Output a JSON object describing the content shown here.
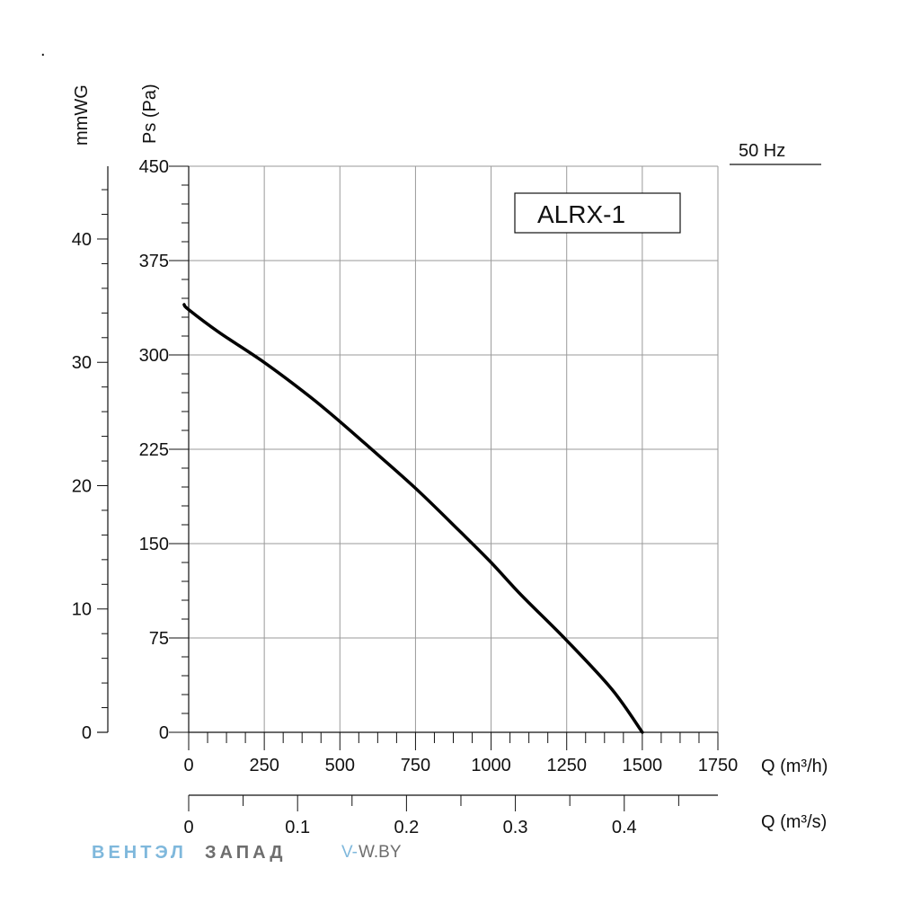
{
  "chart_data": {
    "type": "line",
    "model_label": "ALRX-1",
    "frequency_label": "50 Hz",
    "dot_label": ".",
    "y_left_outer": {
      "label": "mmWG",
      "ticks": [
        0,
        10,
        20,
        30,
        40
      ],
      "range": [
        0,
        45.9
      ]
    },
    "y_left_inner": {
      "label": "Ps (Pa)",
      "ticks": [
        0,
        75,
        150,
        225,
        300,
        375,
        450
      ],
      "range": [
        0,
        450
      ]
    },
    "x_bottom_1": {
      "label": "Q (m³/h)",
      "ticks": [
        0,
        250,
        500,
        750,
        1000,
        1250,
        1500,
        1750
      ],
      "range": [
        0,
        1750
      ]
    },
    "x_bottom_2": {
      "label": "Q (m³/s)",
      "ticks": [
        "0",
        "0.1",
        "0.2",
        "0.3",
        "0.4"
      ],
      "tick_values": [
        0,
        0.1,
        0.2,
        0.3,
        0.4
      ],
      "range": [
        0,
        0.486
      ]
    },
    "grid": true,
    "series": [
      {
        "x": [
          -15,
          0,
          100,
          250,
          400,
          500,
          600,
          750,
          900,
          1000,
          1100,
          1250,
          1400,
          1500
        ],
        "y": [
          340,
          336,
          318,
          294,
          267,
          247,
          226,
          194,
          159,
          135,
          109,
          73,
          34,
          0
        ]
      }
    ]
  },
  "watermark": {
    "part1": "ВЕНТЭЛ",
    "part2": "ЗАПАД",
    "site_prefix": "V-",
    "site": "W.BY",
    "color1": "#7fb8dc",
    "color2": "#6e6e6e"
  }
}
